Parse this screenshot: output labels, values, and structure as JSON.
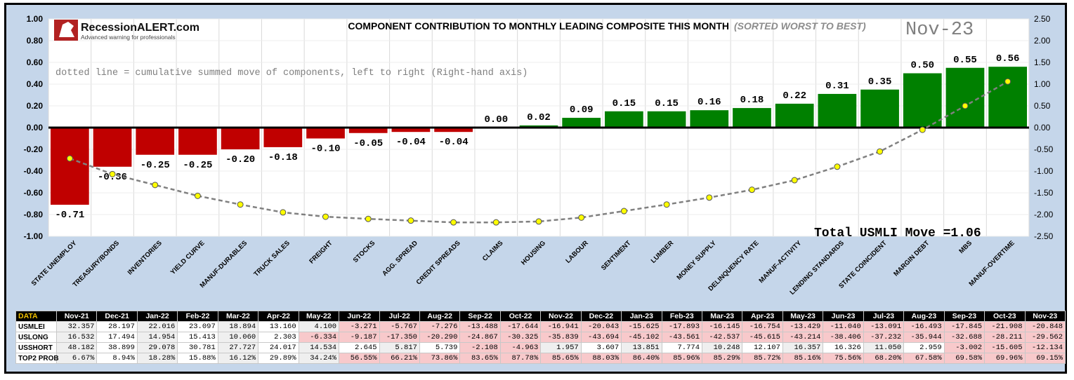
{
  "chart_data": {
    "type": "bar",
    "title": "COMPONENT CONTRIBUTION TO MONTHLY LEADING COMPOSITE THIS MONTH",
    "subtitle": "(SORTED WORST TO BEST)",
    "month_label": "Nov-23",
    "brand": "RecessionALERT.com",
    "brand_tagline": "Advanced warning for professionals",
    "note": "dotted line = cumulative summed move of components, left to right (Right-hand axis)",
    "total_label": "Total USMLI Move =1.06",
    "ylim": [
      -1.0,
      1.0
    ],
    "y2lim": [
      -2.5,
      2.5
    ],
    "yticks": [
      "1.00",
      "0.80",
      "0.60",
      "0.40",
      "0.20",
      "0.00",
      "-0.20",
      "-0.40",
      "-0.60",
      "-0.80",
      "-1.00"
    ],
    "y2ticks": [
      "2.50",
      "2.00",
      "1.50",
      "1.00",
      "0.50",
      "0.00",
      "-0.50",
      "-1.00",
      "-1.50",
      "-2.00",
      "-2.50"
    ],
    "categories": [
      "STATE UNEMPLOY",
      "TREASURY/BONDS",
      "INVENTORIES",
      "YIELD CURVE",
      "MANUF-DURABLES",
      "TRUCK SALES",
      "FREIGHT",
      "STOCKS",
      "AGG. SPREAD",
      "CREDIT SPREADS",
      "CLAIMS",
      "HOUSING",
      "LABOUR",
      "SENTIMENT",
      "LUMBER",
      "MONEY SUPPLY",
      "DELINQUENCY RATE",
      "MANUF-ACTIVITY",
      "LENDING STANDARDS",
      "STATE COINCIDENT",
      "MARGIN DEBT",
      "MBS",
      "MANUF-OVERTIME"
    ],
    "values": [
      -0.71,
      -0.36,
      -0.25,
      -0.25,
      -0.2,
      -0.18,
      -0.1,
      -0.05,
      -0.04,
      -0.04,
      0.0,
      0.02,
      0.09,
      0.15,
      0.15,
      0.16,
      0.18,
      0.22,
      0.31,
      0.35,
      0.5,
      0.55,
      0.56
    ],
    "labels": [
      "-0.71",
      "-0.36",
      "-0.25",
      "-0.25",
      "-0.20",
      "-0.18",
      "-0.10",
      "-0.05",
      "-0.04",
      "-0.04",
      "0.00",
      "0.02",
      "0.09",
      "0.15",
      "0.15",
      "0.16",
      "0.18",
      "0.22",
      "0.31",
      "0.35",
      "0.50",
      "0.55",
      "0.56"
    ],
    "cumulative": [
      -0.71,
      -1.07,
      -1.32,
      -1.57,
      -1.77,
      -1.95,
      -2.05,
      -2.1,
      -2.14,
      -2.18,
      -2.18,
      -2.16,
      -2.07,
      -1.92,
      -1.77,
      -1.61,
      -1.43,
      -1.21,
      -0.9,
      -0.55,
      -0.05,
      0.5,
      1.06
    ],
    "colors": {
      "negative": "#c00000",
      "positive": "#008000",
      "background": "#c5d6ea",
      "plot": "#ffffff",
      "marker": "#ffff00",
      "line": "#808080"
    }
  },
  "table": {
    "corner": "DATA",
    "months": [
      "Nov-21",
      "Dec-21",
      "Jan-22",
      "Feb-22",
      "Mar-22",
      "Apr-22",
      "May-22",
      "Jun-22",
      "Jul-22",
      "Aug-22",
      "Sep-22",
      "Oct-22",
      "Nov-22",
      "Dec-22",
      "Jan-23",
      "Feb-23",
      "Mar-23",
      "Apr-23",
      "May-23",
      "Jun-23",
      "Jul-23",
      "Aug-23",
      "Sep-23",
      "Oct-23",
      "Nov-23"
    ],
    "rows": [
      {
        "label": "USMLEI",
        "values": [
          "32.357",
          "28.197",
          "22.016",
          "23.097",
          "18.894",
          "13.160",
          "4.100",
          "-3.271",
          "-5.767",
          "-7.276",
          "-13.488",
          "-17.644",
          "-16.941",
          "-20.043",
          "-15.625",
          "-17.893",
          "-16.145",
          "-16.754",
          "-13.429",
          "-11.040",
          "-13.091",
          "-16.493",
          "-17.845",
          "-21.908",
          "-20.848"
        ]
      },
      {
        "label": "USLONG",
        "values": [
          "16.532",
          "17.494",
          "14.954",
          "15.413",
          "10.060",
          "2.303",
          "-6.334",
          "-9.187",
          "-17.350",
          "-20.290",
          "-24.867",
          "-30.325",
          "-35.839",
          "-43.694",
          "-45.102",
          "-43.561",
          "-42.537",
          "-45.615",
          "-43.214",
          "-38.406",
          "-37.232",
          "-35.944",
          "-32.688",
          "-28.211",
          "-29.562"
        ]
      },
      {
        "label": "USSHORT",
        "values": [
          "48.182",
          "38.899",
          "29.078",
          "30.781",
          "27.727",
          "24.017",
          "14.534",
          "2.645",
          "5.817",
          "5.739",
          "-2.108",
          "-4.963",
          "1.957",
          "3.607",
          "13.851",
          "7.774",
          "10.248",
          "12.107",
          "16.357",
          "16.326",
          "11.050",
          "2.959",
          "-3.002",
          "-15.605",
          "-12.134"
        ]
      },
      {
        "label": "TOP2 PROB",
        "values": [
          "6.67%",
          "8.94%",
          "18.28%",
          "15.88%",
          "16.12%",
          "29.89%",
          "34.24%",
          "56.55%",
          "66.21%",
          "73.86%",
          "83.65%",
          "87.78%",
          "85.65%",
          "88.03%",
          "86.40%",
          "85.96%",
          "85.29%",
          "85.72%",
          "85.16%",
          "75.56%",
          "68.20%",
          "67.58%",
          "69.58%",
          "69.96%",
          "69.15%"
        ]
      }
    ]
  }
}
